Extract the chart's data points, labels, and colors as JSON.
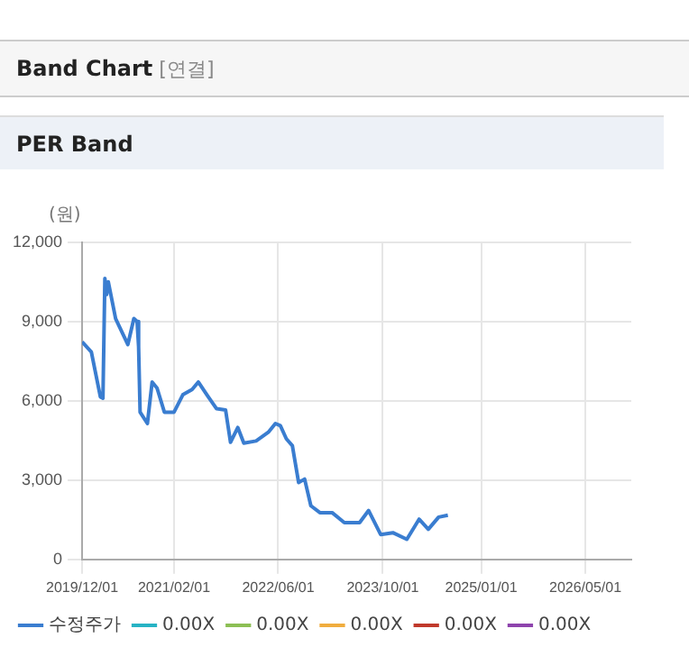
{
  "chart_data": {
    "type": "line",
    "title": "Band Chart [연결]",
    "subtitle": "PER Band",
    "ylabel": "(원)",
    "x": [
      "2019-12-01",
      "2020-01-13",
      "2020-02-24",
      "2020-03-07",
      "2020-03-16",
      "2020-03-24",
      "2020-04-01",
      "2020-05-05",
      "2020-07-01",
      "2020-07-29",
      "2020-08-13",
      "2020-08-20",
      "2020-08-27",
      "2020-09-30",
      "2020-10-22",
      "2020-11-14",
      "2020-12-18",
      "2021-02-01",
      "2021-03-14",
      "2021-04-26",
      "2021-05-25",
      "2021-07-06",
      "2021-08-18",
      "2021-09-29",
      "2021-10-22",
      "2021-11-25",
      "2021-12-23",
      "2022-02-18",
      "2022-04-16",
      "2022-05-19",
      "2022-06-11",
      "2022-07-09",
      "2022-08-06",
      "2022-09-04",
      "2022-10-02",
      "2022-10-31",
      "2022-12-12",
      "2023-02-07",
      "2023-04-05",
      "2023-06-15",
      "2023-07-27",
      "2023-09-21",
      "2023-11-17",
      "2024-01-21",
      "2024-03-18",
      "2024-04-30",
      "2024-06-17",
      "2024-07-30"
    ],
    "series": [
      {
        "name": "수정주가",
        "color": "#3a7dd0",
        "values": [
          8230,
          7850,
          6150,
          6100,
          10630,
          10020,
          10500,
          9110,
          8130,
          9110,
          9000,
          8050,
          5570,
          5140,
          6710,
          6480,
          5570,
          5570,
          6230,
          6430,
          6710,
          6200,
          5700,
          5650,
          4430,
          4990,
          4400,
          4480,
          4810,
          5140,
          5060,
          4560,
          4300,
          2910,
          3040,
          2030,
          1770,
          1770,
          1390,
          1390,
          1850,
          940,
          1010,
          760,
          1520,
          1140,
          1600,
          1670
        ]
      },
      {
        "name": "0.00X",
        "color": "#27b3c4",
        "values": [
          null,
          null,
          null,
          null,
          null,
          null,
          null,
          null,
          null,
          null,
          null,
          null,
          null,
          null,
          null,
          null,
          null,
          null,
          null,
          null,
          null,
          null,
          null,
          null,
          null,
          null,
          null,
          null,
          null,
          null,
          null,
          null,
          null,
          null,
          null,
          null,
          null,
          null,
          null,
          null,
          null,
          null,
          null,
          null,
          null,
          null,
          null,
          null
        ]
      },
      {
        "name": "0.00X",
        "color": "#8cbf54",
        "values": [
          null,
          null,
          null,
          null,
          null,
          null,
          null,
          null,
          null,
          null,
          null,
          null,
          null,
          null,
          null,
          null,
          null,
          null,
          null,
          null,
          null,
          null,
          null,
          null,
          null,
          null,
          null,
          null,
          null,
          null,
          null,
          null,
          null,
          null,
          null,
          null,
          null,
          null,
          null,
          null,
          null,
          null,
          null,
          null,
          null,
          null,
          null,
          null
        ]
      },
      {
        "name": "0.00X",
        "color": "#f0ad3e",
        "values": [
          null,
          null,
          null,
          null,
          null,
          null,
          null,
          null,
          null,
          null,
          null,
          null,
          null,
          null,
          null,
          null,
          null,
          null,
          null,
          null,
          null,
          null,
          null,
          null,
          null,
          null,
          null,
          null,
          null,
          null,
          null,
          null,
          null,
          null,
          null,
          null,
          null,
          null,
          null,
          null,
          null,
          null,
          null,
          null,
          null,
          null,
          null,
          null
        ]
      },
      {
        "name": "0.00X",
        "color": "#c0392b",
        "values": [
          null,
          null,
          null,
          null,
          null,
          null,
          null,
          null,
          null,
          null,
          null,
          null,
          null,
          null,
          null,
          null,
          null,
          null,
          null,
          null,
          null,
          null,
          null,
          null,
          null,
          null,
          null,
          null,
          null,
          null,
          null,
          null,
          null,
          null,
          null,
          null,
          null,
          null,
          null,
          null,
          null,
          null,
          null,
          null,
          null,
          null,
          null,
          null
        ]
      },
      {
        "name": "0.00X",
        "color": "#8e44ad",
        "values": [
          null,
          null,
          null,
          null,
          null,
          null,
          null,
          null,
          null,
          null,
          null,
          null,
          null,
          null,
          null,
          null,
          null,
          null,
          null,
          null,
          null,
          null,
          null,
          null,
          null,
          null,
          null,
          null,
          null,
          null,
          null,
          null,
          null,
          null,
          null,
          null,
          null,
          null,
          null,
          null,
          null,
          null,
          null,
          null,
          null,
          null,
          null,
          null
        ]
      }
    ],
    "xlim": [
      "2019-12-01",
      "2026-12-01"
    ],
    "xticks": [
      {
        "value": "2019-12-01",
        "label": "2019/12/01"
      },
      {
        "value": "2021-02-01",
        "label": "2021/02/01"
      },
      {
        "value": "2022-06-01",
        "label": "2022/06/01"
      },
      {
        "value": "2023-10-01",
        "label": "2023/10/01"
      },
      {
        "value": "2025-01-01",
        "label": "2025/01/01"
      },
      {
        "value": "2026-05-01",
        "label": "2026/05/01"
      }
    ],
    "ylim": [
      0,
      12000
    ],
    "yticks": [
      {
        "value": 0,
        "label": "0"
      },
      {
        "value": 3000,
        "label": "3,000"
      },
      {
        "value": 6000,
        "label": "6,000"
      },
      {
        "value": 9000,
        "label": "9,000"
      },
      {
        "value": 12000,
        "label": "12,000"
      }
    ],
    "grid": true,
    "legend": "bottom",
    "marker": "none",
    "line_style": "solid"
  }
}
